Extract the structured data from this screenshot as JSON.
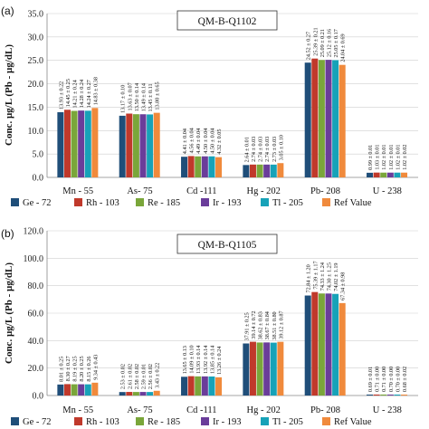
{
  "chart_data": [
    {
      "type": "bar",
      "panel": "(a)",
      "title": "QM-B-Q1102",
      "ylabel": "Conc. µg/L (Pb - µg/dL)",
      "ylim": [
        0,
        35
      ],
      "yticks": [
        "0.0",
        "5.0",
        "10.0",
        "15.0",
        "20.0",
        "25.0",
        "30.0",
        "35.0"
      ],
      "grid": true,
      "categories": [
        "Mn - 55",
        "As- 75",
        "Cd -111",
        "Hg - 202",
        "Pb- 208",
        "U - 238"
      ],
      "series": [
        {
          "name": "Ge - 72",
          "color": "#1f4e79",
          "values": [
            13.93,
            13.17,
            4.41,
            2.64,
            24.52,
            0.99
          ],
          "labels": [
            "13.93 ± 0.22",
            "13.17 ± 0.10",
            "4.41 ± 0.04",
            "2.64 ± 0.01",
            "24.52 ± 0.27",
            "0.99 ± 0.01"
          ]
        },
        {
          "name": "Rh - 103",
          "color": "#c0392b",
          "values": [
            14.45,
            13.63,
            4.56,
            2.74,
            25.39,
            1.03
          ],
          "labels": [
            "14.45 ± 0.25",
            "13.63 ± 0.07",
            "4.56 ± 0.04",
            "2.74 ± 0.03",
            "25.39 ± 0.21",
            "1.03 ± 0.01"
          ]
        },
        {
          "name": "Re - 185",
          "color": "#7aa63a",
          "values": [
            14.21,
            13.5,
            4.49,
            2.74,
            25.09,
            1.02
          ],
          "labels": [
            "14.21 ± 0.24",
            "13.50 ± 0.14",
            "4.49 ± 0.04",
            "2.74 ± 0.03",
            "25.09 ± 0.21",
            "1.02 ± 0.01"
          ]
        },
        {
          "name": "Ir - 193",
          "color": "#6a3d9a",
          "values": [
            14.28,
            13.49,
            4.5,
            2.74,
            25.12,
            1.02
          ],
          "labels": [
            "14.28 ± 0.24",
            "13.49 ± 0.14",
            "4.50 ± 0.04",
            "2.74 ± 0.03",
            "25.12 ± 0.16",
            "1.02 ± 0.01"
          ]
        },
        {
          "name": "Tl - 205",
          "color": "#17a2b8",
          "values": [
            14.24,
            13.45,
            4.5,
            2.73,
            25.05,
            1.02
          ],
          "labels": [
            "14.24 ± 0.27",
            "13.45 ± 0.11",
            "4.50 ± 0.04",
            "2.73 ± 0.03",
            "25.05 ± 0.17",
            "1.02 ± 0.01"
          ]
        },
        {
          "name": "Ref Value",
          "color": "#f08a3c",
          "values": [
            14.83,
            13.8,
            4.32,
            3.05,
            24.04,
            1.02
          ],
          "labels": [
            "14.83 ± 0.38",
            "13.80 ± 0.65",
            "4.32 ± 0.05",
            "3.05 ± 0.10",
            "24.04 ± 0.69",
            "1.02 ± 0.02"
          ]
        }
      ]
    },
    {
      "type": "bar",
      "panel": "(b)",
      "title": "QM-B-Q1105",
      "ylabel": "Conc. µg/L (Pb - µg/dL)",
      "ylim": [
        0,
        120
      ],
      "yticks": [
        "0.0",
        "20.0",
        "40.0",
        "60.0",
        "80.0",
        "100.0",
        "120.0"
      ],
      "grid": true,
      "categories": [
        "Mn - 55",
        "As- 75",
        "Cd -111",
        "Hg - 202",
        "Pb- 208",
        "U - 238"
      ],
      "series": [
        {
          "name": "Ge - 72",
          "color": "#1f4e79",
          "values": [
            8.01,
            2.53,
            13.65,
            37.91,
            72.84,
            0.69
          ],
          "labels": [
            "8.01 ± 0.25",
            "2.53 ± 0.02",
            "13.65 ± 0.13",
            "37.91 ± 0.25",
            "72.84 ± 1.20",
            "0.69 ± 0.01"
          ]
        },
        {
          "name": "Rh - 103",
          "color": "#c0392b",
          "values": [
            8.3,
            2.61,
            14.09,
            39.14,
            75.39,
            0.71
          ],
          "labels": [
            "8.30 ± 0.27",
            "2.61 ± 0.02",
            "14.09 ± 0.10",
            "39.14 ± 0.72",
            "75.39 ± 1.17",
            "0.71 ± 0.00"
          ]
        },
        {
          "name": "Re - 185",
          "color": "#7aa63a",
          "values": [
            8.19,
            2.58,
            13.93,
            38.62,
            74.33,
            0.71
          ],
          "labels": [
            "8.19 ± 0.25",
            "2.58 ± 0.02",
            "13.93 ± 0.14",
            "38.62 ± 0.83",
            "74.33 ± 1.24",
            "0.71 ± 0.00"
          ]
        },
        {
          "name": "Ir - 193",
          "color": "#6a3d9a",
          "values": [
            8.2,
            2.59,
            13.92,
            38.67,
            74.3,
            0.7
          ],
          "labels": [
            "8.20 ± 0.25",
            "2.59 ± 0.01",
            "13.92 ± 0.14",
            "38.67 ± 0.84",
            "74.30 ± 1.25",
            "0.70 ± 0.00"
          ]
        },
        {
          "name": "Tl - 205",
          "color": "#17a2b8",
          "values": [
            8.15,
            2.56,
            13.85,
            38.51,
            74.02,
            0.7
          ],
          "labels": [
            "8.15 ± 0.26",
            "2.56 ± 0.02",
            "13.85 ± 0.14",
            "38.51 ± 0.80",
            "74.02 ± 1.19",
            "0.70 ± 0.00"
          ]
        },
        {
          "name": "Ref Value",
          "color": "#f08a3c",
          "values": [
            9.34,
            3.43,
            13.26,
            39.12,
            67.34,
            0.68
          ],
          "labels": [
            "9.34 ± 0.43",
            "3.43 ± 0.22",
            "13.26 ± 0.24",
            "39.12 ± 0.87",
            "67.34 ± 0.98",
            "0.68 ± 0.02"
          ]
        }
      ]
    }
  ]
}
